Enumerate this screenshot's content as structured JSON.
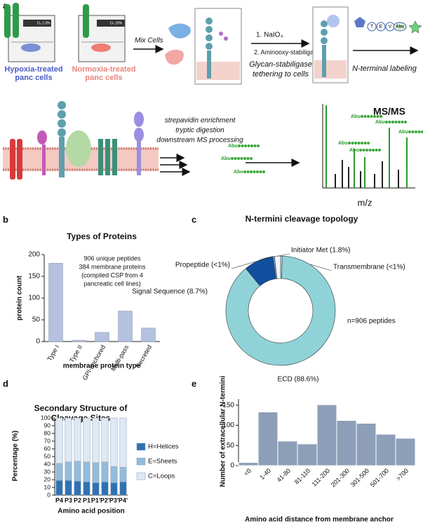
{
  "panel_labels": [
    "a",
    "b",
    "c",
    "d",
    "e"
  ],
  "schematic": {
    "o2_hypoxia": "O₂ 1.0%",
    "o2_normoxia": "O₂ 20%",
    "hypoxia": [
      "Hypoxia-treated",
      "panc cells"
    ],
    "normoxia": [
      "Normoxia-treated",
      "panc cells"
    ],
    "mix": "Mix Cells",
    "step1": "1. NaIO₄",
    "step2": "2. Aminooxy-stabiligase",
    "tethering": [
      "Glycan-stabiligase",
      "tethering to cells"
    ],
    "labeling": "N-terminal labeling",
    "tev": [
      "T",
      "E",
      "V"
    ],
    "abu": "Abu",
    "processing": [
      "strepavidin enrichment",
      "tryptic digestion",
      "downstream MS processing"
    ],
    "ms_title": "MS/MS",
    "ms_axis": "m/z"
  },
  "chart_data": [
    {
      "type": "bar",
      "title": "Types of Proteins",
      "categories": [
        "Type I",
        "Type II",
        "GPI-anchored",
        "Multi-pass",
        "Secreted"
      ],
      "values": [
        180,
        3,
        21,
        70,
        31
      ],
      "color": "#b4c2df",
      "ylim": [
        0,
        200
      ],
      "yticks": [
        0,
        50,
        100,
        150,
        200
      ],
      "ylabel": "protein count",
      "xlabel": "membrane protein type",
      "annotation": [
        "906 unique peptides",
        "384 membrane proteins",
        "(compiled CSP from 4",
        "pancreatic cell lines)"
      ]
    },
    {
      "type": "donut",
      "title": "N-termini cleavage topology",
      "values": [
        0.5,
        88.6,
        8.7,
        0.5,
        1.8
      ],
      "value_labels": [
        "Transmembrane (<1%)",
        "ECD (88.6%)",
        "Signal Sequence (8.7%)",
        "Propeptide (<1%)",
        "Initiator Met (1.8%)"
      ],
      "colors": [
        "#d3e6f3",
        "#8fd3d8",
        "#0f4f9e",
        "#6e9fcf",
        "#eef5fb"
      ],
      "annotation": "n=906 peptides"
    },
    {
      "type": "stacked_bar",
      "title": [
        "Secondary Structure of",
        "Cleavage Sites"
      ],
      "categories": [
        "P4",
        "P3",
        "P2",
        "P1",
        "P1'",
        "P2'",
        "P3'",
        "P4'"
      ],
      "series": [
        {
          "name": "H=Helices",
          "color": "#2f72b4",
          "values": [
            19,
            19,
            18,
            17,
            16,
            17,
            16,
            17
          ]
        },
        {
          "name": "E=Sheets",
          "color": "#93bbdb",
          "values": [
            22,
            24,
            26,
            26,
            26,
            26,
            21,
            19
          ]
        },
        {
          "name": "C=Loops",
          "color": "#dde9f4",
          "values": [
            59,
            57,
            56,
            57,
            58,
            57,
            63,
            64
          ]
        }
      ],
      "ylim": [
        0,
        100
      ],
      "yticks": [
        0,
        10,
        20,
        30,
        40,
        50,
        60,
        70,
        80,
        90,
        100
      ],
      "ylabel": "Percentage (%)",
      "xlabel": "Amino acid position",
      "legend": "right"
    },
    {
      "type": "bar",
      "categories": [
        "<0",
        "1-40",
        "41-80",
        "81-110",
        "111-200",
        "201-300",
        "301-500",
        "501-700",
        ">700"
      ],
      "values": [
        8,
        133,
        61,
        54,
        151,
        112,
        105,
        78,
        68
      ],
      "color": "#8d9fb8",
      "ylim": [
        0,
        165
      ],
      "yticks": [
        0,
        50,
        100,
        150
      ],
      "ylabel": "Number of extracellular N-termini",
      "xlabel": "Amino acid distance from membrane anchor"
    }
  ]
}
